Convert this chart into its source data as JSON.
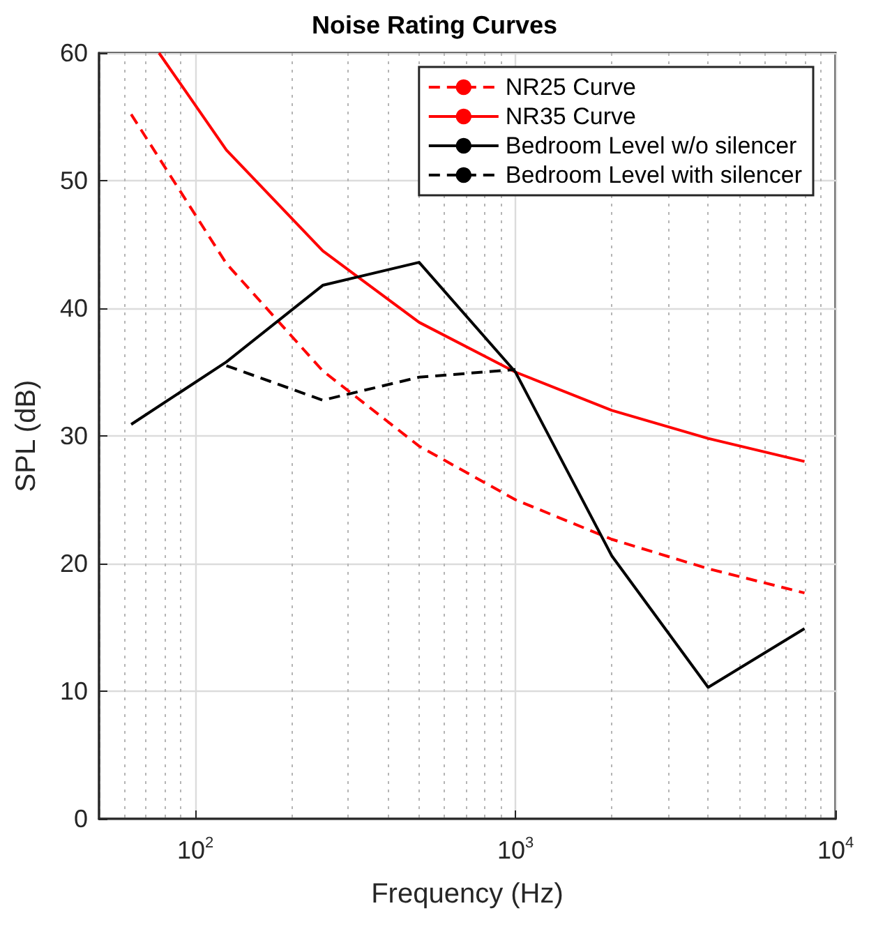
{
  "chart_data": {
    "type": "line",
    "title": "Noise Rating Curves",
    "xlabel": "Frequency (Hz)",
    "ylabel": "SPL (dB)",
    "log": "x",
    "grid": true,
    "legend": "top right",
    "marker": "none",
    "xlim": [
      50,
      10000
    ],
    "xticks": [
      {
        "value": 100,
        "label": "10$^{2}$"
      },
      {
        "value": 1000,
        "label": "10$^{3}$"
      },
      {
        "value": 10000,
        "label": "10$^{4}$"
      }
    ],
    "ylim": [
      0,
      60
    ],
    "yticks": [
      0,
      10,
      20,
      30,
      40,
      50,
      60
    ],
    "series": [
      {
        "name": "NR25 Curve",
        "color": "#ff0000",
        "line_style": "dashed",
        "x": [
          63,
          125,
          250,
          500,
          1000,
          2000,
          4000,
          8000
        ],
        "values": [
          55.2,
          43.5,
          35.1,
          29.2,
          25,
          21.9,
          19.6,
          17.7
        ]
      },
      {
        "name": "NR35 Curve",
        "color": "#ff0000",
        "line_style": "solid",
        "x": [
          77,
          125,
          250,
          500,
          1000,
          2000,
          4000,
          8000
        ],
        "values": [
          60,
          52.4,
          44.5,
          38.9,
          35,
          32,
          29.8,
          28
        ]
      },
      {
        "name": "Bedroom Level w/o silencer",
        "color": "#000000",
        "line_style": "solid",
        "x": [
          63,
          125,
          250,
          500,
          1000,
          2000,
          4000,
          8000
        ],
        "values": [
          30.9,
          35.8,
          41.8,
          43.6,
          35,
          20.6,
          10.3,
          14.9
        ]
      },
      {
        "name": "Bedroom Level with silencer",
        "color": "#000000",
        "line_style": "dashed",
        "x": [
          125,
          250,
          500,
          1000
        ],
        "values": [
          35.5,
          32.8,
          34.6,
          35.2
        ]
      }
    ]
  }
}
